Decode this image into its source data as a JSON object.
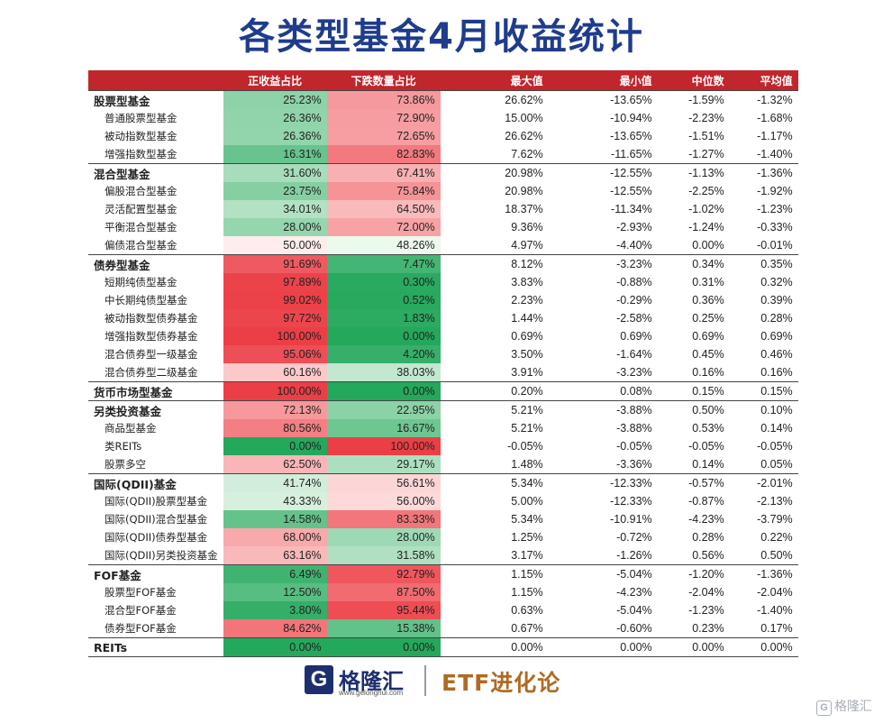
{
  "title": "各类型基金4月收益统计",
  "table": {
    "headers": [
      "",
      "正收益占比",
      "下跌数量占比",
      "最大值",
      "最小值",
      "中位数",
      "平均值"
    ],
    "rows": [
      {
        "name": "股票型基金",
        "cat": true,
        "vals": [
          "25.23%",
          "73.86%",
          "26.62%",
          "-13.65%",
          "-1.59%",
          "-1.32%"
        ],
        "up": 25.23,
        "down": 73.86
      },
      {
        "name": "普通股票型基金",
        "cat": false,
        "vals": [
          "26.36%",
          "72.90%",
          "15.00%",
          "-10.94%",
          "-2.23%",
          "-1.68%"
        ],
        "up": 26.36,
        "down": 72.9
      },
      {
        "name": "被动指数型基金",
        "cat": false,
        "vals": [
          "26.36%",
          "72.65%",
          "26.62%",
          "-13.65%",
          "-1.51%",
          "-1.17%"
        ],
        "up": 26.36,
        "down": 72.65
      },
      {
        "name": "增强指数型基金",
        "cat": false,
        "vals": [
          "16.31%",
          "82.83%",
          "7.62%",
          "-11.65%",
          "-1.27%",
          "-1.40%"
        ],
        "up": 16.31,
        "down": 82.83
      },
      {
        "name": "混合型基金",
        "cat": true,
        "vals": [
          "31.60%",
          "67.41%",
          "20.98%",
          "-12.55%",
          "-1.13%",
          "-1.36%"
        ],
        "up": 31.6,
        "down": 67.41
      },
      {
        "name": "偏股混合型基金",
        "cat": false,
        "vals": [
          "23.75%",
          "75.84%",
          "20.98%",
          "-12.55%",
          "-2.25%",
          "-1.92%"
        ],
        "up": 23.75,
        "down": 75.84
      },
      {
        "name": "灵活配置型基金",
        "cat": false,
        "vals": [
          "34.01%",
          "64.50%",
          "18.37%",
          "-11.34%",
          "-1.02%",
          "-1.23%"
        ],
        "up": 34.01,
        "down": 64.5
      },
      {
        "name": "平衡混合型基金",
        "cat": false,
        "vals": [
          "28.00%",
          "72.00%",
          "9.36%",
          "-2.93%",
          "-1.24%",
          "-0.33%"
        ],
        "up": 28.0,
        "down": 72.0
      },
      {
        "name": "偏债混合型基金",
        "cat": false,
        "vals": [
          "50.00%",
          "48.26%",
          "4.97%",
          "-4.40%",
          "0.00%",
          "-0.01%"
        ],
        "up": 50.0,
        "down": 48.26
      },
      {
        "name": "债券型基金",
        "cat": true,
        "vals": [
          "91.69%",
          "7.47%",
          "8.12%",
          "-3.23%",
          "0.34%",
          "0.35%"
        ],
        "up": 91.69,
        "down": 7.47
      },
      {
        "name": "短期纯债型基金",
        "cat": false,
        "vals": [
          "97.89%",
          "0.30%",
          "3.83%",
          "-0.88%",
          "0.31%",
          "0.32%"
        ],
        "up": 97.89,
        "down": 0.3
      },
      {
        "name": "中长期纯债型基金",
        "cat": false,
        "vals": [
          "99.02%",
          "0.52%",
          "2.23%",
          "-0.29%",
          "0.36%",
          "0.39%"
        ],
        "up": 99.02,
        "down": 0.52
      },
      {
        "name": "被动指数型债券基金",
        "cat": false,
        "vals": [
          "97.72%",
          "1.83%",
          "1.44%",
          "-2.58%",
          "0.25%",
          "0.28%"
        ],
        "up": 97.72,
        "down": 1.83
      },
      {
        "name": "增强指数型债券基金",
        "cat": false,
        "vals": [
          "100.00%",
          "0.00%",
          "0.69%",
          "0.69%",
          "0.69%",
          "0.69%"
        ],
        "up": 100.0,
        "down": 0.0
      },
      {
        "name": "混合债券型一级基金",
        "cat": false,
        "vals": [
          "95.06%",
          "4.20%",
          "3.50%",
          "-1.64%",
          "0.45%",
          "0.46%"
        ],
        "up": 95.06,
        "down": 4.2
      },
      {
        "name": "混合债券型二级基金",
        "cat": false,
        "vals": [
          "60.16%",
          "38.03%",
          "3.91%",
          "-3.23%",
          "0.16%",
          "0.16%"
        ],
        "up": 60.16,
        "down": 38.03
      },
      {
        "name": "货币市场型基金",
        "cat": true,
        "vals": [
          "100.00%",
          "0.00%",
          "0.20%",
          "0.08%",
          "0.15%",
          "0.15%"
        ],
        "up": 100.0,
        "down": 0.0
      },
      {
        "name": "另类投资基金",
        "cat": true,
        "vals": [
          "72.13%",
          "22.95%",
          "5.21%",
          "-3.88%",
          "0.50%",
          "0.10%"
        ],
        "up": 72.13,
        "down": 22.95
      },
      {
        "name": "商品型基金",
        "cat": false,
        "vals": [
          "80.56%",
          "16.67%",
          "5.21%",
          "-3.88%",
          "0.53%",
          "0.14%"
        ],
        "up": 80.56,
        "down": 16.67
      },
      {
        "name": "类REITs",
        "cat": false,
        "vals": [
          "0.00%",
          "100.00%",
          "-0.05%",
          "-0.05%",
          "-0.05%",
          "-0.05%"
        ],
        "up": 0.0,
        "down": 100.0
      },
      {
        "name": "股票多空",
        "cat": false,
        "vals": [
          "62.50%",
          "29.17%",
          "1.48%",
          "-3.36%",
          "0.14%",
          "0.05%"
        ],
        "up": 62.5,
        "down": 29.17
      },
      {
        "name": "国际(QDII)基金",
        "cat": true,
        "vals": [
          "41.74%",
          "56.61%",
          "5.34%",
          "-12.33%",
          "-0.57%",
          "-2.01%"
        ],
        "up": 41.74,
        "down": 56.61
      },
      {
        "name": "国际(QDII)股票型基金",
        "cat": false,
        "vals": [
          "43.33%",
          "56.00%",
          "5.00%",
          "-12.33%",
          "-0.87%",
          "-2.13%"
        ],
        "up": 43.33,
        "down": 56.0
      },
      {
        "name": "国际(QDII)混合型基金",
        "cat": false,
        "vals": [
          "14.58%",
          "83.33%",
          "5.34%",
          "-10.91%",
          "-4.23%",
          "-3.79%"
        ],
        "up": 14.58,
        "down": 83.33
      },
      {
        "name": "国际(QDII)债券型基金",
        "cat": false,
        "vals": [
          "68.00%",
          "28.00%",
          "1.25%",
          "-0.72%",
          "0.28%",
          "0.22%"
        ],
        "up": 68.0,
        "down": 28.0
      },
      {
        "name": "国际(QDII)另类投资基金",
        "cat": false,
        "vals": [
          "63.16%",
          "31.58%",
          "3.17%",
          "-1.26%",
          "0.56%",
          "0.50%"
        ],
        "up": 63.16,
        "down": 31.58
      },
      {
        "name": "FOF基金",
        "cat": true,
        "vals": [
          "6.49%",
          "92.79%",
          "1.15%",
          "-5.04%",
          "-1.20%",
          "-1.36%"
        ],
        "up": 6.49,
        "down": 92.79
      },
      {
        "name": "股票型FOF基金",
        "cat": false,
        "vals": [
          "12.50%",
          "87.50%",
          "1.15%",
          "-4.23%",
          "-2.04%",
          "-2.04%"
        ],
        "up": 12.5,
        "down": 87.5
      },
      {
        "name": "混合型FOF基金",
        "cat": false,
        "vals": [
          "3.80%",
          "95.44%",
          "0.63%",
          "-5.04%",
          "-1.23%",
          "-1.40%"
        ],
        "up": 3.8,
        "down": 95.44
      },
      {
        "name": "债券型FOF基金",
        "cat": false,
        "vals": [
          "84.62%",
          "15.38%",
          "0.67%",
          "-0.60%",
          "0.23%",
          "0.17%"
        ],
        "up": 84.62,
        "down": 15.38
      },
      {
        "name": "REITs",
        "cat": true,
        "vals": [
          "0.00%",
          "0.00%",
          "0.00%",
          "0.00%",
          "0.00%",
          "0.00%"
        ],
        "up": 0.0,
        "down": 0.0
      }
    ]
  },
  "footer": {
    "logo_mark": "G",
    "logo_name": "格隆汇",
    "logo_url": "www.gelonghui.com",
    "partner": "ETF进化论"
  },
  "watermark": {
    "mark": "G",
    "text": "格隆汇"
  },
  "colors": {
    "title": "#1f3c8c",
    "header_bg": "#c0262c",
    "positive_red": "#e53c44",
    "negative_green": "#22a65a"
  }
}
